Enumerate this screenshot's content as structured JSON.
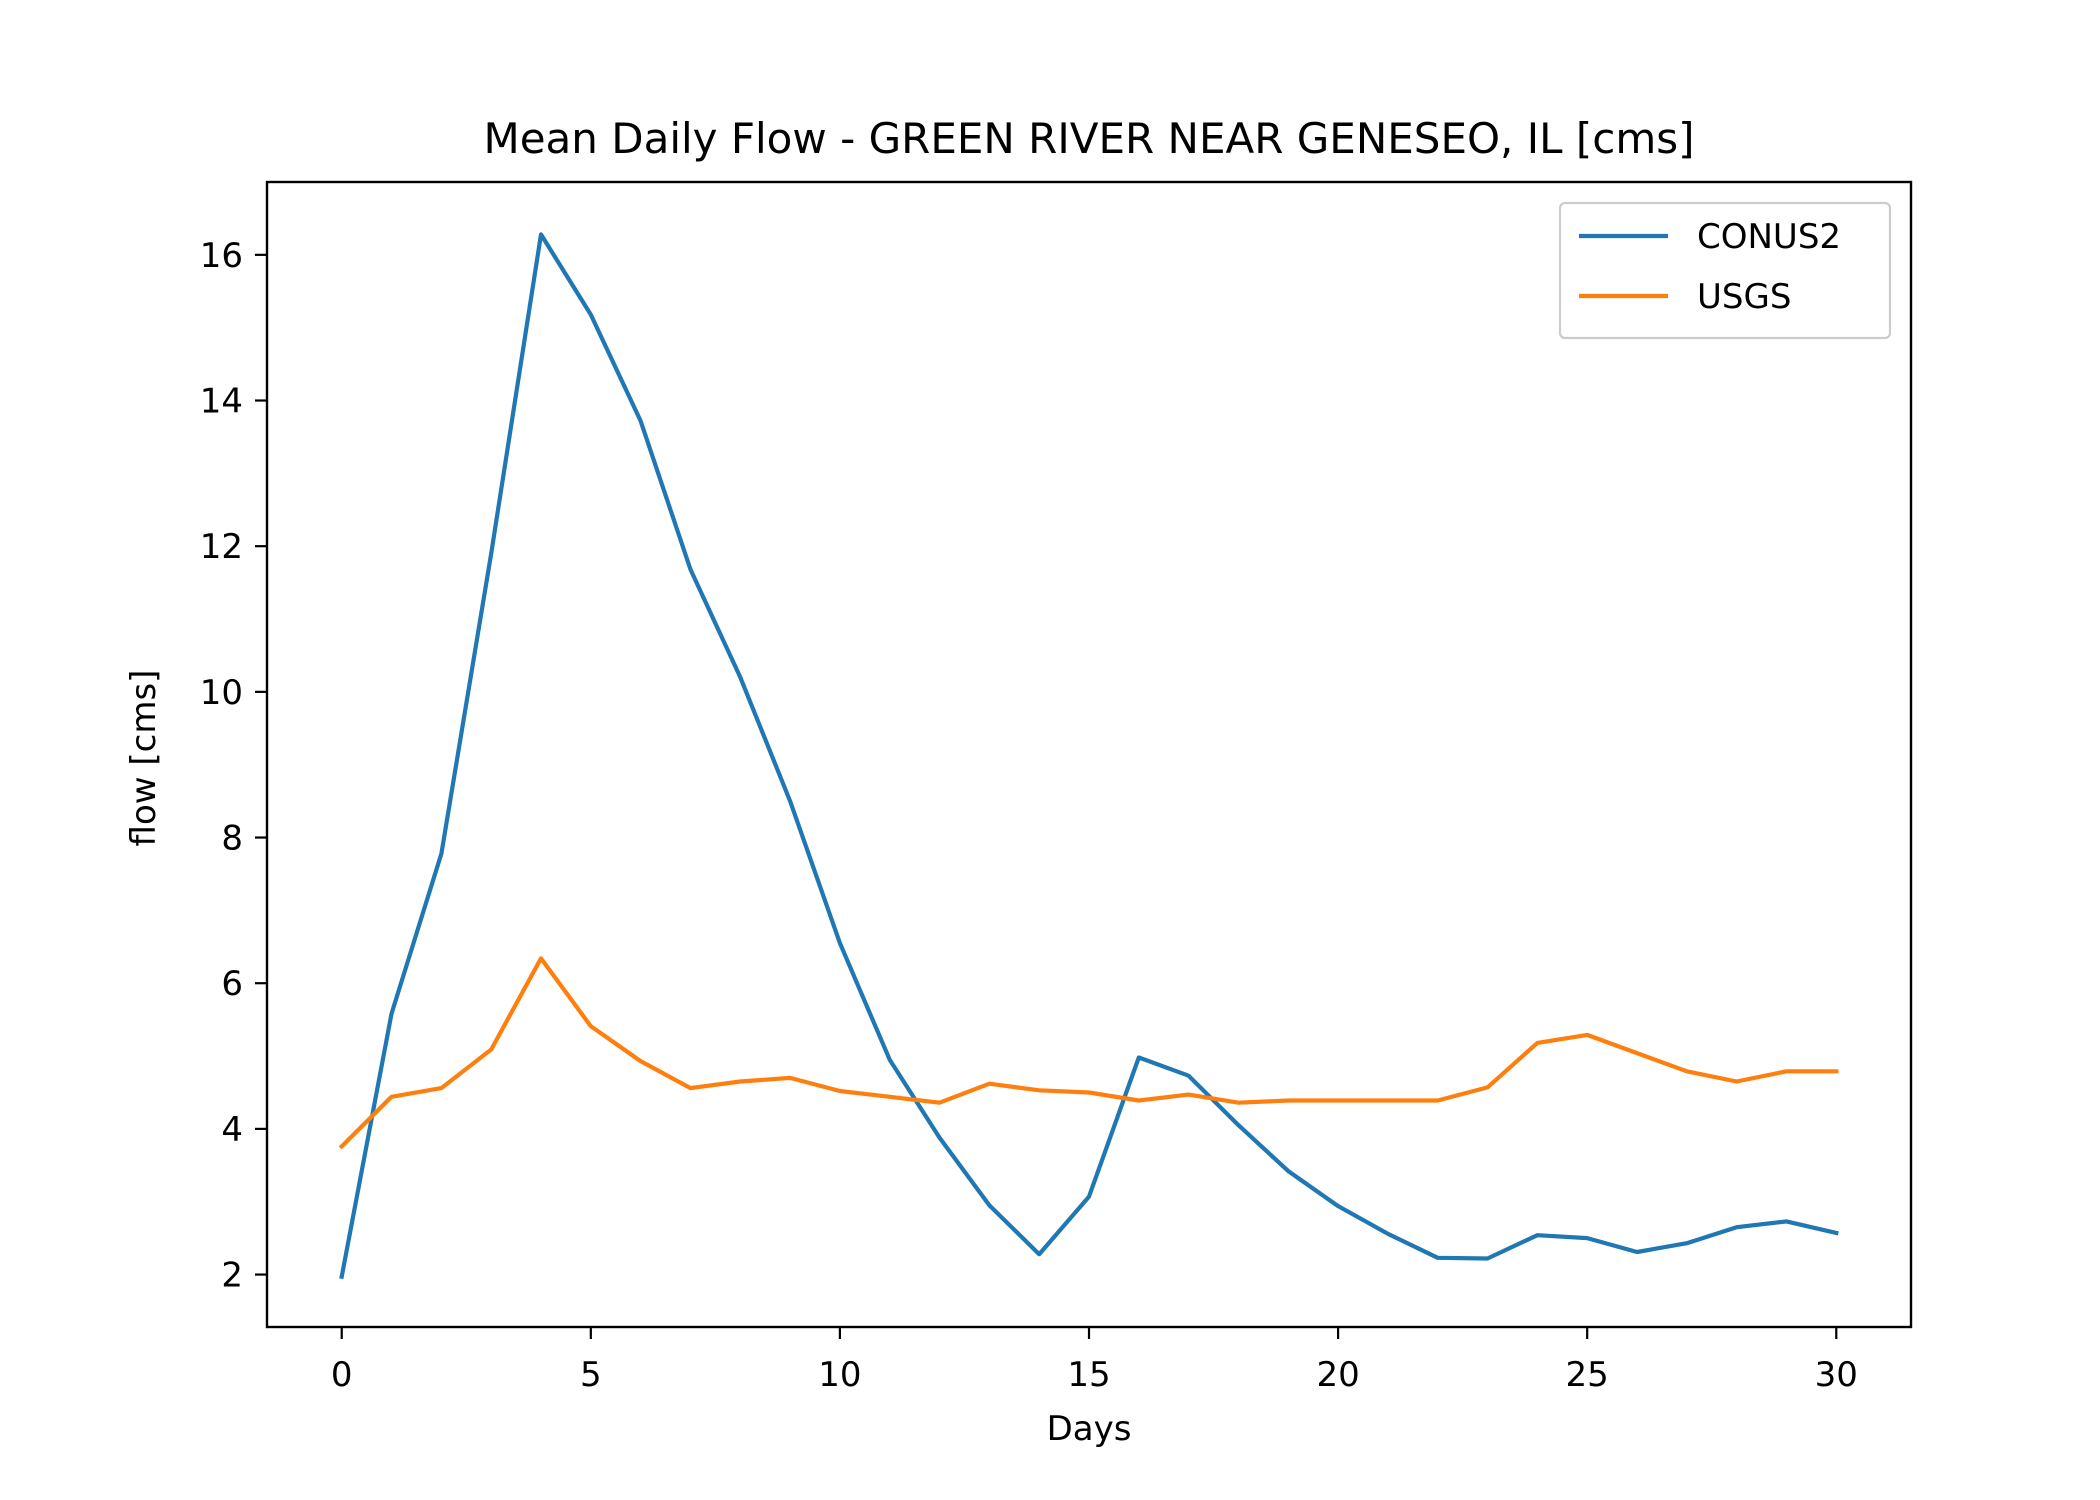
{
  "chart_data": {
    "type": "line",
    "title": "Mean Daily Flow - GREEN RIVER NEAR GENESEO, IL [cms]",
    "xlabel": "Days",
    "ylabel": "flow [cms]",
    "xlim": [
      -1.5,
      31.5
    ],
    "ylim": [
      1.28,
      17.0
    ],
    "x_ticks": [
      0,
      5,
      10,
      15,
      20,
      25,
      30
    ],
    "y_ticks": [
      2,
      4,
      6,
      8,
      10,
      12,
      14,
      16
    ],
    "grid": false,
    "legend_position": "top-right",
    "x": [
      0,
      1,
      2,
      3,
      4,
      5,
      6,
      7,
      8,
      9,
      10,
      11,
      12,
      13,
      14,
      15,
      16,
      17,
      18,
      19,
      20,
      21,
      22,
      23,
      24,
      25,
      26,
      27,
      28,
      29,
      30
    ],
    "series": [
      {
        "name": "CONUS2",
        "color": "#1f77b4",
        "values": [
          1.97,
          5.58,
          7.78,
          11.9,
          16.28,
          15.18,
          13.72,
          11.68,
          10.2,
          8.5,
          6.55,
          4.95,
          3.88,
          2.95,
          2.28,
          3.07,
          4.98,
          4.73,
          4.05,
          3.42,
          2.94,
          2.56,
          2.23,
          2.22,
          2.54,
          2.5,
          2.31,
          2.43,
          2.65,
          2.73,
          2.57
        ]
      },
      {
        "name": "USGS",
        "color": "#ff7f0e",
        "values": [
          3.76,
          4.44,
          4.56,
          5.09,
          6.34,
          5.41,
          4.93,
          4.56,
          4.65,
          4.7,
          4.52,
          4.44,
          4.36,
          4.62,
          4.53,
          4.5,
          4.39,
          4.47,
          4.36,
          4.39,
          4.39,
          4.39,
          4.39,
          4.57,
          5.18,
          5.29,
          5.04,
          4.79,
          4.65,
          4.79,
          4.79
        ]
      }
    ]
  }
}
